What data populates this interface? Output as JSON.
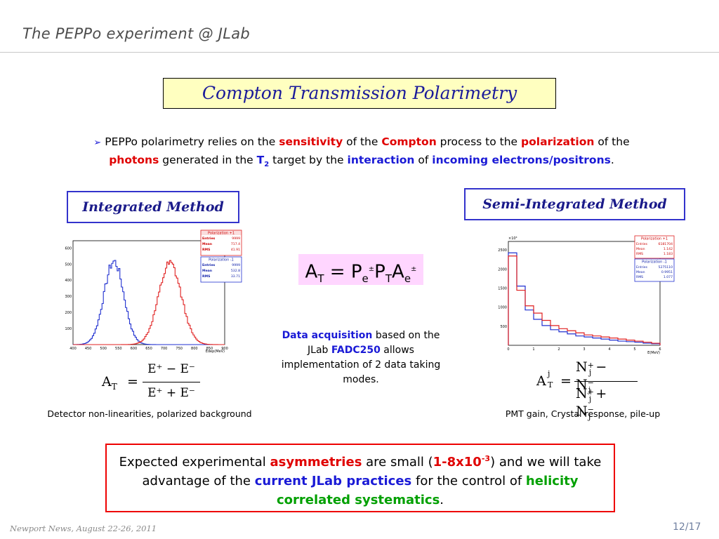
{
  "header": {
    "title": "The PEPPo experiment @ JLab"
  },
  "main_title": "Compton Transmission Polarimetry",
  "intro": {
    "bullet": "➢",
    "t1": "PEPPo polarimetry relies on the ",
    "k1": "sensitivity",
    "t2": " of the ",
    "k2": "Compton",
    "t3": " process to the ",
    "k3": "polarization",
    "t4": " of the",
    "k4": "photons",
    "t5": " generated in the ",
    "k5": "T",
    "k5sub": "2",
    "t6": " target by the ",
    "k6": "interaction",
    "t7": " of ",
    "k7": "incoming electrons/positrons",
    "t8": "."
  },
  "integrated": {
    "title": "Integrated Method",
    "caption": "Detector non-linearities, polarized background",
    "plot": {
      "xlabel": "Edep(MeV)",
      "xticks": [
        "400",
        "450",
        "500",
        "550",
        "600",
        "650",
        "700",
        "750",
        "800",
        "850",
        "900"
      ],
      "yticks": [
        "100",
        "200",
        "300",
        "400",
        "500",
        "600"
      ],
      "stats_pos": {
        "title": "Polarization +1",
        "rows": [
          [
            "Entries",
            "9999"
          ],
          [
            "Mean",
            "717.4"
          ],
          [
            "RMS",
            "41.91"
          ]
        ]
      },
      "stats_neg": {
        "title": "Polarization -1",
        "rows": [
          [
            "Entries",
            "9999"
          ],
          [
            "Mean",
            "532.8"
          ],
          [
            "RMS",
            "33.71"
          ]
        ]
      }
    },
    "formula": {
      "lhs": "A",
      "lhs_sub": "T",
      "eq": "=",
      "num": "E⁺ − E⁻",
      "den": "E⁺ + E⁻"
    }
  },
  "semi": {
    "title": "Semi-Integrated Method",
    "caption": "PMT gain, Crystal response, pile-up",
    "plot": {
      "xlabel": "E(MeV)",
      "exp": "×10³",
      "xticks": [
        "0",
        "1",
        "2",
        "3",
        "4",
        "5",
        "6"
      ],
      "yticks": [
        "500",
        "1000",
        "1500",
        "2000",
        "2500"
      ],
      "stats_pos": {
        "title": "Polarization +1",
        "rows": [
          [
            "Entries",
            "6181704"
          ],
          [
            "Mean",
            "1.142"
          ],
          [
            "RMS",
            "1.183"
          ]
        ]
      },
      "stats_neg": {
        "title": "Polarization -1",
        "rows": [
          [
            "Entries",
            "5275110"
          ],
          [
            "Mean",
            "0.9951"
          ],
          [
            "RMS",
            "1.077"
          ]
        ]
      }
    },
    "formula": {
      "lhs": "A",
      "lhs_sup": "j",
      "lhs_sub": "T",
      "eq": "=",
      "num": "N",
      "den": "N",
      "sub": "j",
      "sp": "+",
      "sm": "−",
      "op_num": "−",
      "op_den": "+"
    }
  },
  "center_formula": {
    "a": "A",
    "a_sub": "T",
    "eq": "=",
    "p": "P",
    "p_sub": "e",
    "pm": "±",
    "pt": "P",
    "pt_sub": "T",
    "ae": "A",
    "ae_sub": "e"
  },
  "daq": {
    "k1": "Data acquisition",
    "t1": " based on the JLab ",
    "k2": "FADC250",
    "t2": " allows implementation of 2 data taking modes."
  },
  "bottom": {
    "t1": "Expected experimental ",
    "k1": "asymmetries",
    "t2": " are small (",
    "k2": "1-8x10",
    "k2sup": "-3",
    "t3": ") and we will take advantage of the ",
    "k3": "current JLab practices",
    "t4": " for the control of ",
    "k4": "helicity correlated systematics",
    "t5": "."
  },
  "footer": {
    "left": "Newport News, August 22-26, 2011",
    "right": "12/17"
  },
  "colors": {
    "pos": "#e02020",
    "neg": "#2030d0",
    "title_bg": "#ffffc0",
    "formula_bg": "#ffd6ff"
  }
}
